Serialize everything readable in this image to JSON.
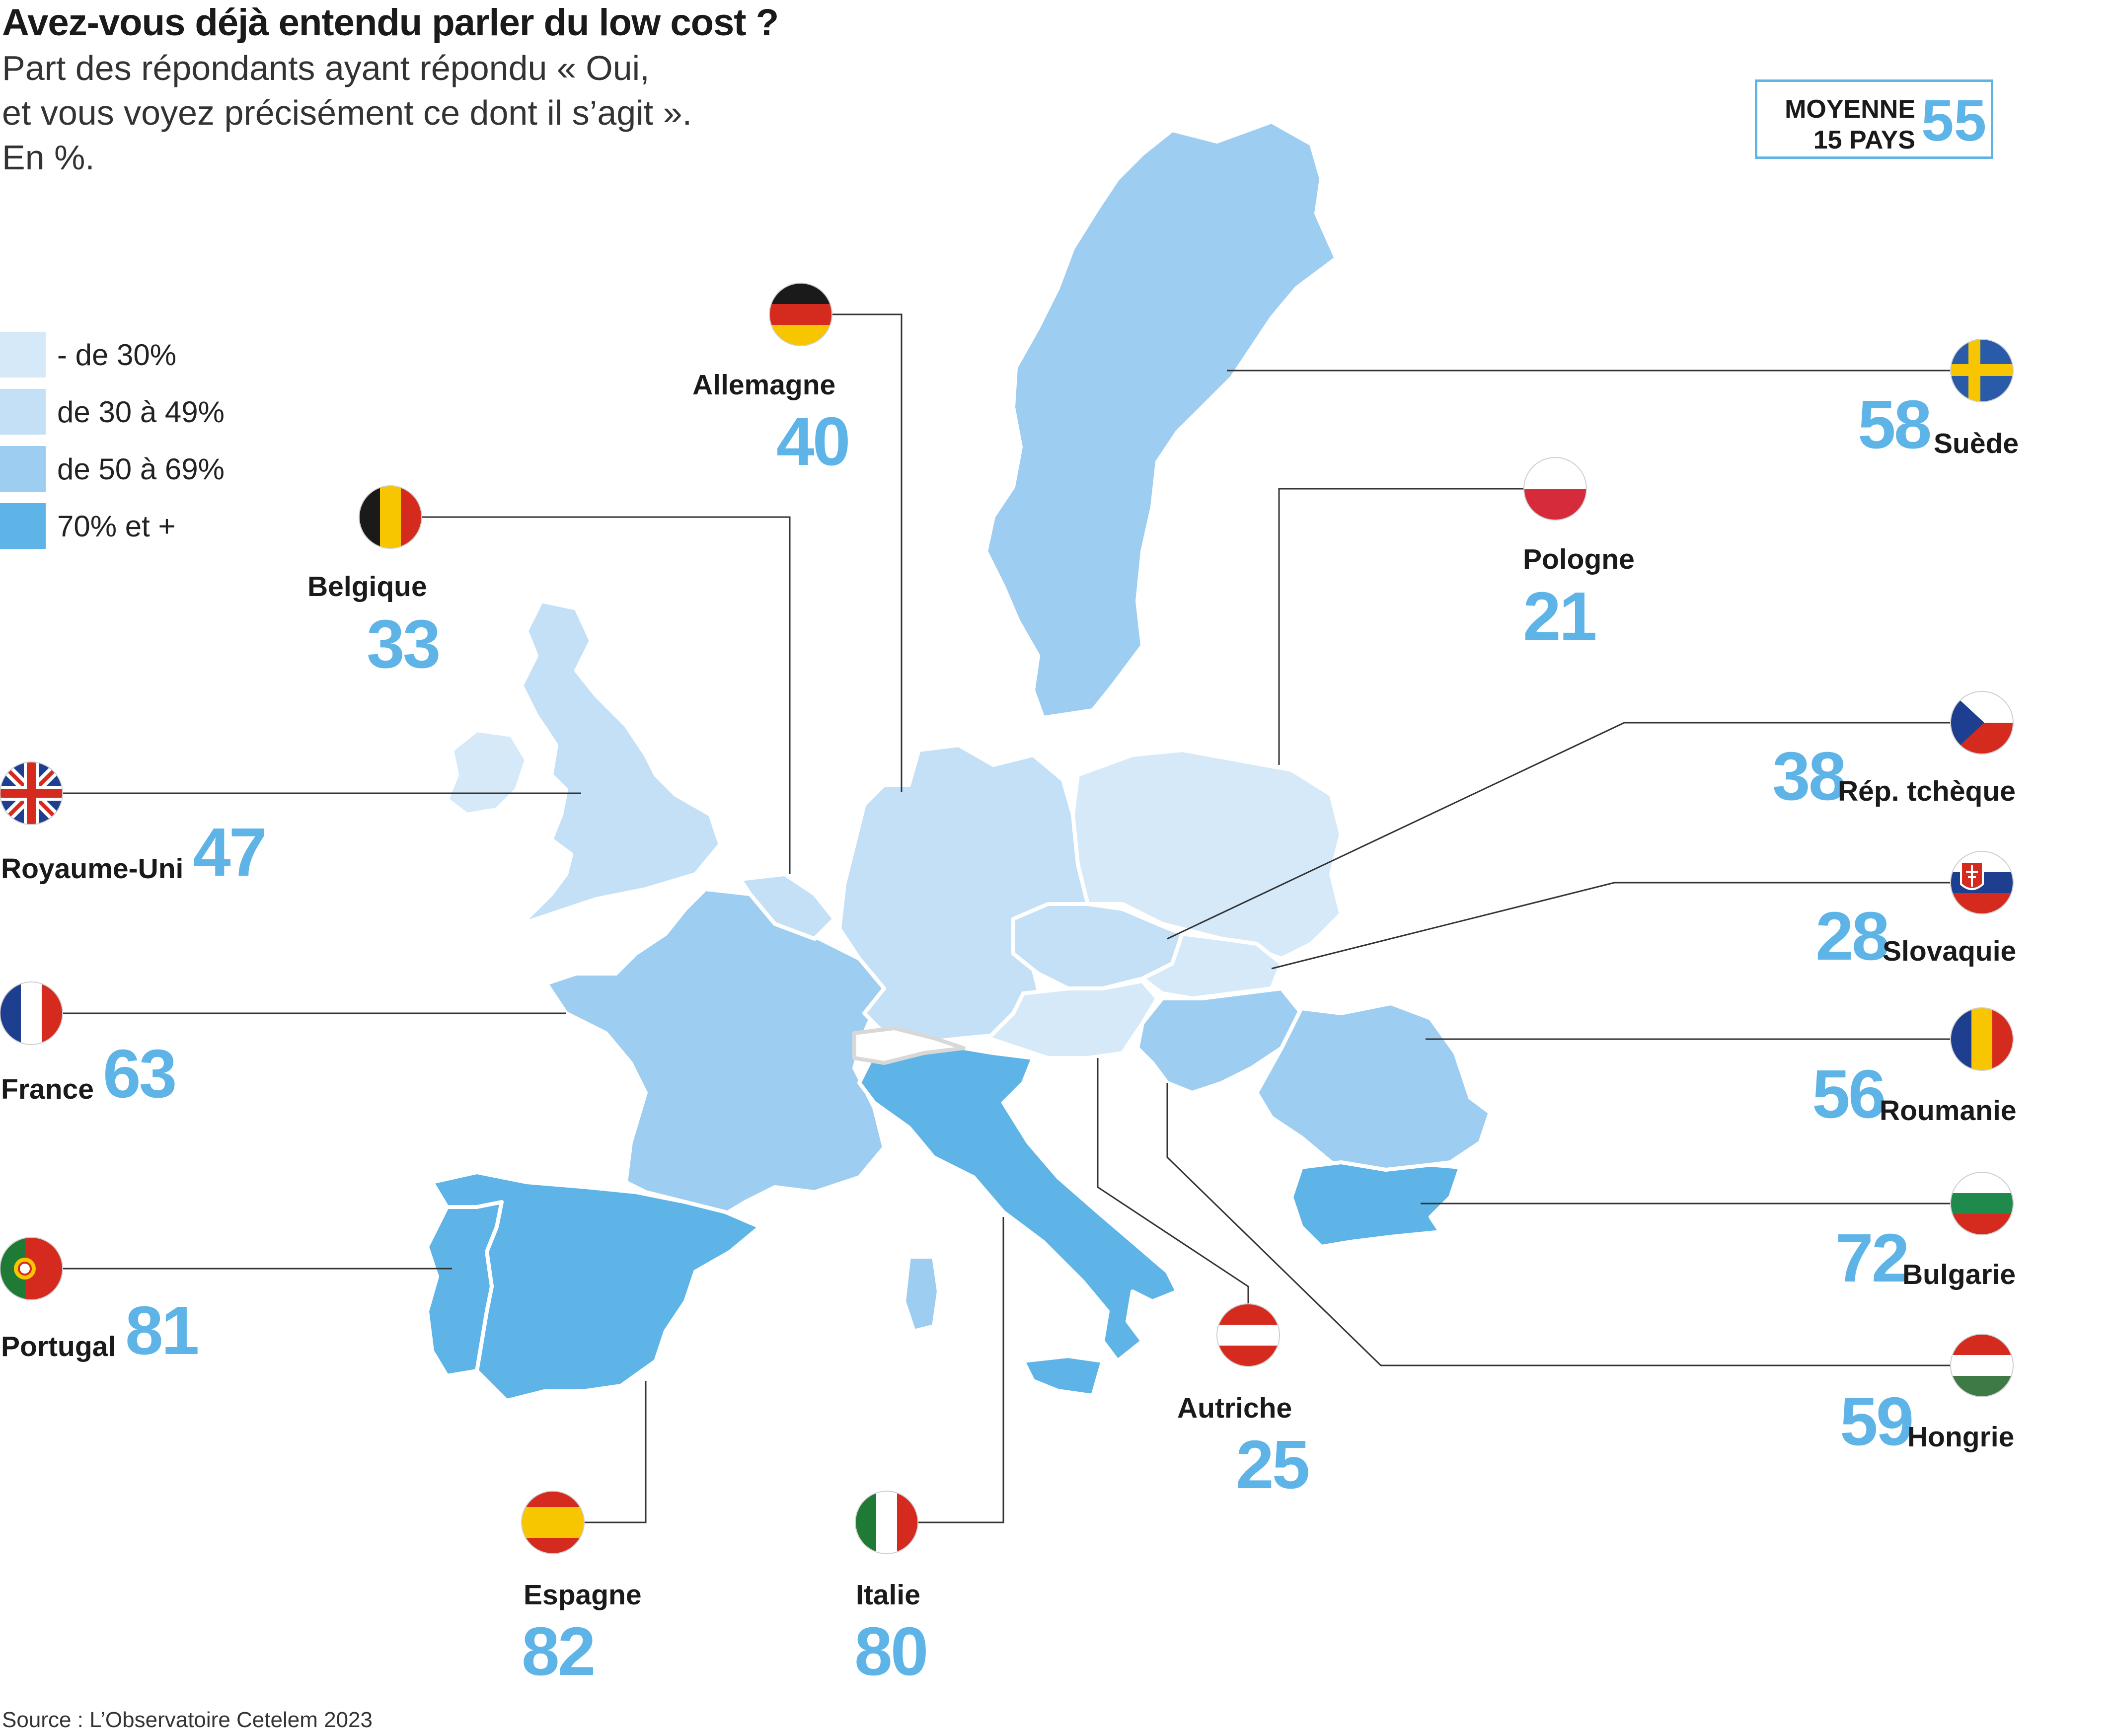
{
  "title": "Avez-vous déjà entendu parler du low cost ?",
  "subtitle": {
    "line1": "Part des répondants ayant répondu « Oui,",
    "line2": "et vous voyez précisément ce dont il s’agit ».",
    "line3": "En %."
  },
  "average": {
    "label_line1": "MOYENNE",
    "label_line2": "15 PAYS",
    "value": "55"
  },
  "legend": [
    {
      "label": "- de 30%",
      "color": "#d6e9f8"
    },
    {
      "label": "de 30 à 49%",
      "color": "#c4e0f6"
    },
    {
      "label": "de 50 à 69%",
      "color": "#9dcdf0"
    },
    {
      "label": "70% et +",
      "color": "#5eb4e7"
    }
  ],
  "countries": {
    "allemagne": {
      "name": "Allemagne",
      "value": "40",
      "flag": "germany-flag"
    },
    "belgique": {
      "name": "Belgique",
      "value": "33",
      "flag": "belgium-flag"
    },
    "royaume_uni": {
      "name": "Royaume-Uni",
      "value": "47",
      "flag": "uk-flag"
    },
    "france": {
      "name": "France",
      "value": "63",
      "flag": "france-flag"
    },
    "portugal": {
      "name": "Portugal",
      "value": "81",
      "flag": "portugal-flag"
    },
    "espagne": {
      "name": "Espagne",
      "value": "82",
      "flag": "spain-flag"
    },
    "italie": {
      "name": "Italie",
      "value": "80",
      "flag": "italy-flag"
    },
    "autriche": {
      "name": "Autriche",
      "value": "25",
      "flag": "austria-flag"
    },
    "suede": {
      "name": "Suède",
      "value": "58",
      "flag": "sweden-flag"
    },
    "pologne": {
      "name": "Pologne",
      "value": "21",
      "flag": "poland-flag"
    },
    "rep_tcheque": {
      "name": "Rép. tchèque",
      "value": "38",
      "flag": "czech-flag"
    },
    "slovaquie": {
      "name": "Slovaquie",
      "value": "28",
      "flag": "slovakia-flag"
    },
    "roumanie": {
      "name": "Roumanie",
      "value": "56",
      "flag": "romania-flag"
    },
    "bulgarie": {
      "name": "Bulgarie",
      "value": "72",
      "flag": "bulgaria-flag"
    },
    "hongrie": {
      "name": "Hongrie",
      "value": "59",
      "flag": "hungary-flag"
    }
  },
  "source": "Source : L’Observatoire Cetelem 2023"
}
